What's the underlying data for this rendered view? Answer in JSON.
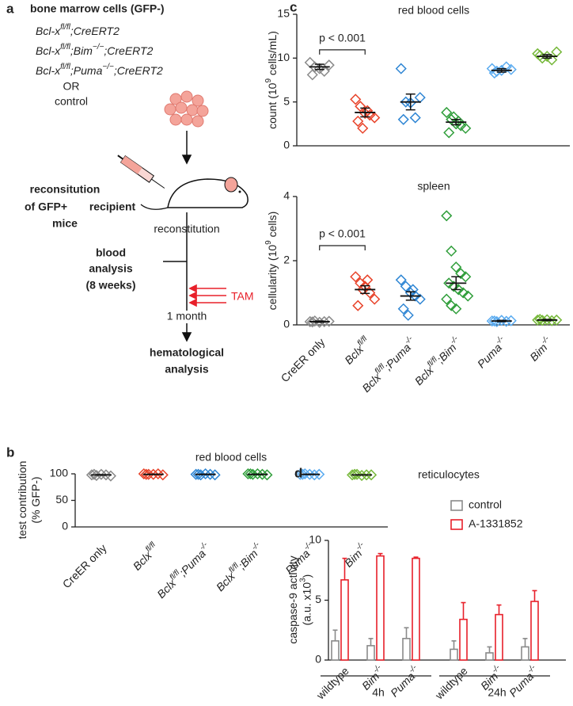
{
  "diagram": {
    "panel_label": "a",
    "title": "bone marrow cells (GFP-)",
    "genotypes": [
      [
        {
          "t": "Bcl-x",
          "it": true
        },
        {
          "t": "fl/fl",
          "sup": true,
          "it": true
        },
        {
          "t": ";CreERT2",
          "it": true
        }
      ],
      [
        {
          "t": "Bcl-x",
          "it": true
        },
        {
          "t": "fl/fl",
          "sup": true,
          "it": true
        },
        {
          "t": ";Bim",
          "it": true
        },
        {
          "t": "−/−",
          "sup": true,
          "it": true
        },
        {
          "t": ";CreERT2",
          "it": true
        }
      ],
      [
        {
          "t": "Bcl-x",
          "it": true
        },
        {
          "t": "fl/fl",
          "sup": true,
          "it": true
        },
        {
          "t": ";Puma",
          "it": true
        },
        {
          "t": "−/−",
          "sup": true,
          "it": true
        },
        {
          "t": ";CreERT2",
          "it": true
        }
      ]
    ],
    "or": "OR",
    "control": "control",
    "reconstitution_step": [
      "reconsitution",
      "of GFP+",
      "recipient",
      "mice"
    ],
    "reconstitution": "reconstitution",
    "blood_analysis": [
      "blood",
      "analysis",
      "(8 weeks)"
    ],
    "tam": "TAM",
    "one_month": "1 month",
    "hematological": [
      "hematological",
      "analysis"
    ]
  },
  "chart_data": [
    {
      "type": "strip",
      "panel_label": "b",
      "title": "red blood cells",
      "ylabel": [
        "test contribution",
        "(% GFP-)"
      ],
      "categories": [
        "CreER only",
        [
          {
            "t": "Bclx",
            "it": true
          },
          {
            "t": "fl/fl",
            "sup": true,
            "it": true
          }
        ],
        [
          {
            "t": "Bclx",
            "it": true
          },
          {
            "t": "fl/fl",
            "sup": true,
            "it": true
          },
          {
            "t": ";Puma",
            "it": true
          },
          {
            "t": "-/-",
            "sup": true,
            "it": true
          }
        ],
        [
          {
            "t": "Bclx",
            "it": true
          },
          {
            "t": "fl/fl",
            "sup": true,
            "it": true
          },
          {
            "t": ";Bim",
            "it": true
          },
          {
            "t": "-/-",
            "sup": true,
            "it": true
          }
        ],
        [
          {
            "t": "Puma",
            "it": true
          },
          {
            "t": "-/-",
            "sup": true,
            "it": true
          }
        ],
        [
          {
            "t": "Bim",
            "it": true
          },
          {
            "t": "-/-",
            "sup": true,
            "it": true
          }
        ]
      ],
      "colors": [
        "#8a8a8a",
        "#e8432a",
        "#2f86d4",
        "#2f9e3a",
        "#5aabf0",
        "#76b83a"
      ],
      "points": [
        [
          98,
          97,
          99,
          98,
          96,
          99
        ],
        [
          100,
          99,
          99,
          100,
          98,
          99
        ],
        [
          99,
          98,
          100,
          99,
          98,
          99
        ],
        [
          100,
          99,
          100,
          99,
          98,
          100
        ],
        [
          99,
          100,
          99,
          98,
          99,
          99
        ],
        [
          98,
          99,
          97,
          98,
          98,
          99
        ]
      ],
      "means": [
        98,
        99,
        99,
        99,
        99,
        98
      ],
      "sem": [
        0.5,
        0.3,
        0.3,
        0.3,
        0.3,
        0.3
      ],
      "ylim": [
        0,
        100
      ],
      "yticks": [
        0,
        50,
        100
      ]
    },
    {
      "type": "strip",
      "panel_label": "c",
      "title": "red blood cells",
      "ylabel": [
        [
          {
            "t": "count (10"
          },
          {
            "t": "9",
            "sup": true
          },
          {
            "t": " cells/mL)"
          }
        ]
      ],
      "annotation": "p < 0.001",
      "colors": [
        "#8a8a8a",
        "#e8432a",
        "#2f86d4",
        "#2f9e3a",
        "#5aabf0",
        "#76b83a"
      ],
      "points": [
        [
          9.5,
          9,
          8.8,
          8.5,
          9.2,
          8.1
        ],
        [
          5.3,
          4.5,
          3.7,
          3.5,
          3.2,
          2.8,
          2,
          4
        ],
        [
          8.8,
          5,
          4.9,
          3.2,
          5.5,
          3
        ],
        [
          3.8,
          3,
          2.5,
          2.3,
          2,
          1.5,
          3.3,
          2.8
        ],
        [
          8.8,
          8.5,
          8.6,
          9,
          8.7,
          8.3
        ],
        [
          10.5,
          10,
          10.2,
          9.8,
          10.7,
          10.3
        ]
      ],
      "means": [
        9,
        3.8,
        5,
        2.7,
        8.6,
        10.2
      ],
      "sem": [
        0.3,
        0.5,
        0.9,
        0.3,
        0.2,
        0.2
      ],
      "ylim": [
        0,
        15
      ],
      "yticks": [
        0,
        5,
        10,
        15
      ]
    },
    {
      "type": "strip",
      "title": "spleen",
      "ylabel": [
        [
          {
            "t": "cellularity (10"
          },
          {
            "t": "9",
            "sup": true
          },
          {
            "t": " cells)"
          }
        ]
      ],
      "annotation": "p < 0.001",
      "categories": [
        "CreER only",
        [
          {
            "t": "Bclx",
            "it": true
          },
          {
            "t": "fl/fl",
            "sup": true,
            "it": true
          }
        ],
        [
          {
            "t": "Bclx",
            "it": true
          },
          {
            "t": "fl/fl",
            "sup": true,
            "it": true
          },
          {
            "t": ";Puma",
            "it": true
          },
          {
            "t": "-/-",
            "sup": true,
            "it": true
          }
        ],
        [
          {
            "t": "Bclx",
            "it": true
          },
          {
            "t": "fl/fl",
            "sup": true,
            "it": true
          },
          {
            "t": ";Bim",
            "it": true
          },
          {
            "t": "-/-",
            "sup": true,
            "it": true
          }
        ],
        [
          {
            "t": "Puma",
            "it": true
          },
          {
            "t": "-/-",
            "sup": true,
            "it": true
          }
        ],
        [
          {
            "t": "Bim",
            "it": true
          },
          {
            "t": "-/-",
            "sup": true,
            "it": true
          }
        ]
      ],
      "colors": [
        "#8a8a8a",
        "#e8432a",
        "#2f86d4",
        "#2f9e3a",
        "#5aabf0",
        "#76b83a"
      ],
      "points": [
        [
          0.1,
          0.12,
          0.08,
          0.1,
          0.11,
          0.09
        ],
        [
          1.5,
          1.3,
          1.2,
          1.0,
          0.8,
          0.6,
          1.1,
          1.4
        ],
        [
          1.4,
          1.2,
          1.0,
          0.9,
          0.8,
          0.5,
          0.3,
          1.1
        ],
        [
          3.4,
          2.3,
          1.8,
          1.6,
          1.5,
          1.3,
          1.2,
          1.1,
          1.0,
          0.9,
          0.8,
          0.6,
          0.5
        ],
        [
          0.12,
          0.1,
          0.14,
          0.11,
          0.13,
          0.12
        ],
        [
          0.15,
          0.14,
          0.16,
          0.13,
          0.15,
          0.17
        ]
      ],
      "means": [
        0.1,
        1.1,
        0.9,
        1.3,
        0.12,
        0.15
      ],
      "sem": [
        0.02,
        0.12,
        0.13,
        0.2,
        0.02,
        0.02
      ],
      "ylim": [
        0,
        4
      ],
      "yticks": [
        0,
        2,
        4
      ]
    },
    {
      "type": "bar",
      "panel_label": "d",
      "title": "reticulocytes",
      "ylabel": [
        "caspase-9 activity",
        [
          {
            "t": "(a.u. x10"
          },
          {
            "t": "3",
            "sup": true
          },
          {
            "t": ")"
          }
        ]
      ],
      "groups": [
        {
          "name": "4h",
          "categories": [
            "wildtype",
            [
              {
                "t": "Bim",
                "it": true
              },
              {
                "t": "-/-",
                "sup": true,
                "it": true
              }
            ],
            [
              {
                "t": "Puma",
                "it": true
              },
              {
                "t": "-/-",
                "sup": true,
                "it": true
              }
            ]
          ]
        },
        {
          "name": "24h",
          "categories": [
            "wildtype",
            [
              {
                "t": "Bim",
                "it": true
              },
              {
                "t": "-/-",
                "sup": true,
                "it": true
              }
            ],
            [
              {
                "t": "Puma",
                "it": true
              },
              {
                "t": "-/-",
                "sup": true,
                "it": true
              }
            ]
          ]
        }
      ],
      "series": [
        {
          "name": "control",
          "color": "#8a8a8a",
          "values": [
            1.6,
            1.2,
            1.8,
            0.9,
            0.6,
            1.1
          ],
          "errors": [
            0.9,
            0.6,
            0.9,
            0.7,
            0.5,
            0.7
          ]
        },
        {
          "name": "A-1331852",
          "color": "#e8202a",
          "values": [
            6.7,
            8.7,
            8.5,
            3.4,
            3.8,
            4.9
          ],
          "errors": [
            1.8,
            0.2,
            0.1,
            1.4,
            0.8,
            0.9
          ]
        }
      ],
      "legend": "upper right",
      "ylim": [
        0,
        10
      ],
      "yticks": [
        0,
        5,
        10
      ]
    }
  ]
}
